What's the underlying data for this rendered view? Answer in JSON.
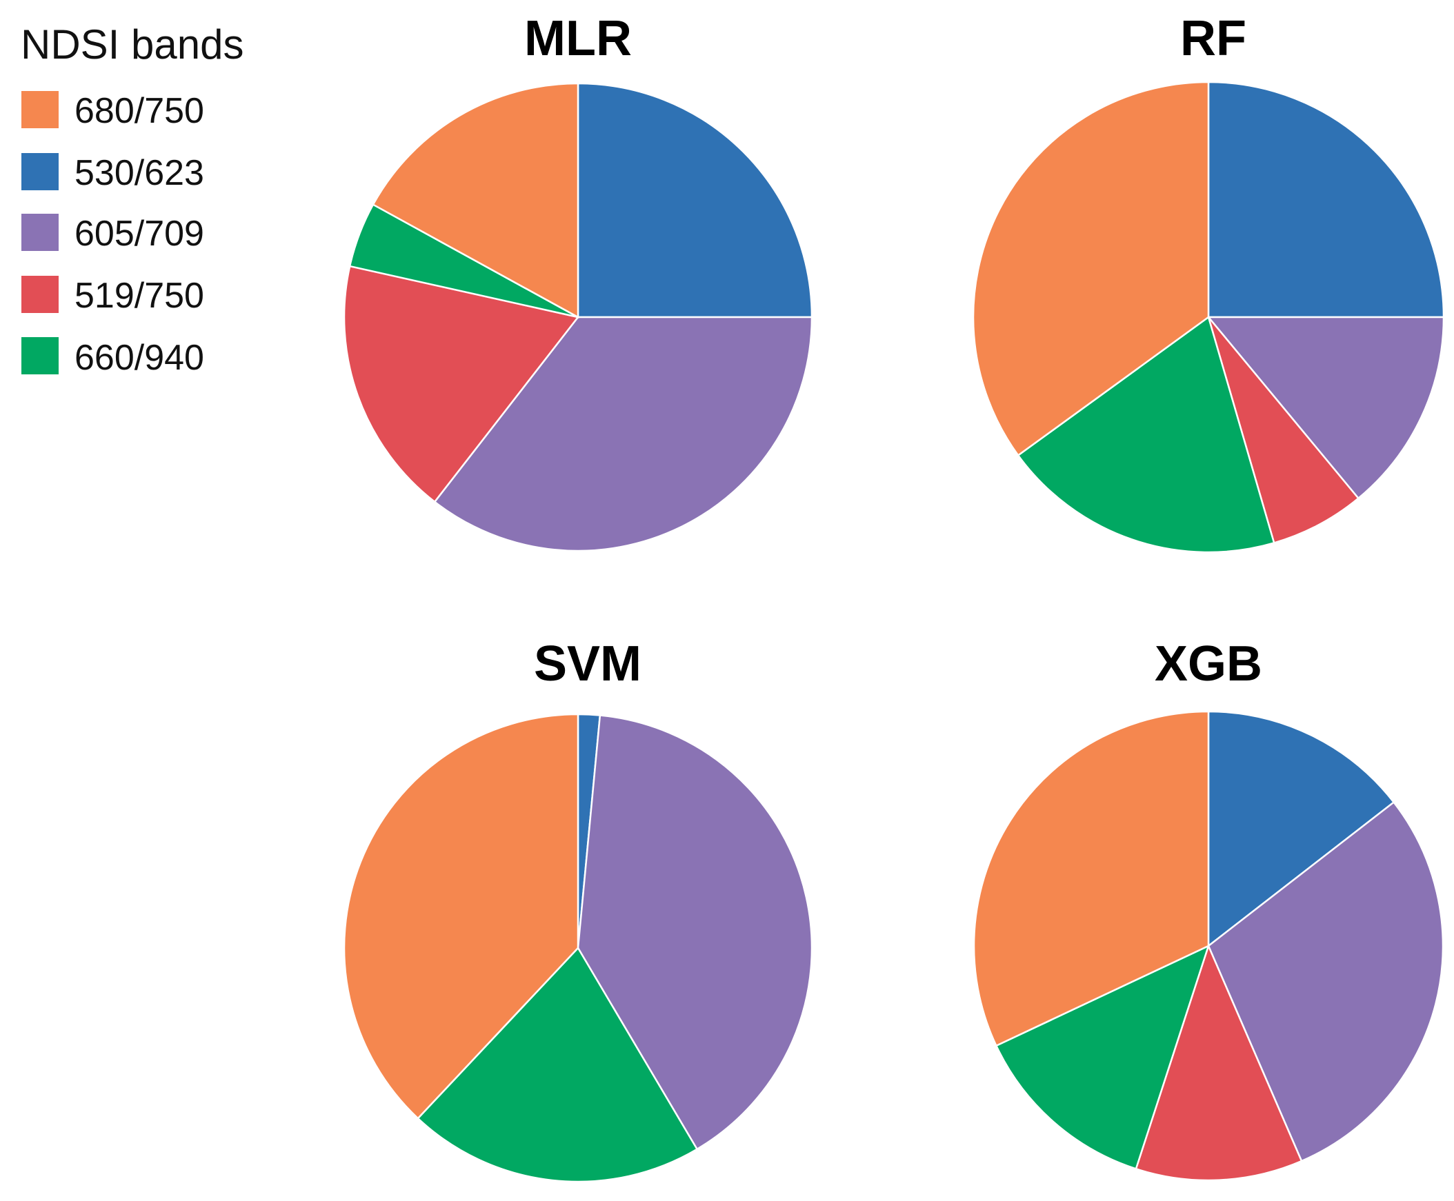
{
  "legend": {
    "title": "NDSI bands",
    "items": [
      {
        "label": "680/750",
        "color": "#f5874f"
      },
      {
        "label": "530/623",
        "color": "#2f72b4"
      },
      {
        "label": "605/709",
        "color": "#8a73b4"
      },
      {
        "label": "519/750",
        "color": "#e24e55"
      },
      {
        "label": "660/940",
        "color": "#01a862"
      }
    ]
  },
  "chart_data": [
    {
      "type": "pie",
      "title": "MLR",
      "slices": [
        {
          "label": "530/623",
          "value": 25.0
        },
        {
          "label": "605/709",
          "value": 35.5
        },
        {
          "label": "519/750",
          "value": 18.0
        },
        {
          "label": "660/940",
          "value": 4.5
        },
        {
          "label": "680/750",
          "value": 17.0
        }
      ]
    },
    {
      "type": "pie",
      "title": "RF",
      "slices": [
        {
          "label": "530/623",
          "value": 25.0
        },
        {
          "label": "605/709",
          "value": 14.0
        },
        {
          "label": "519/750",
          "value": 6.5
        },
        {
          "label": "660/940",
          "value": 19.5
        },
        {
          "label": "680/750",
          "value": 35.0
        }
      ]
    },
    {
      "type": "pie",
      "title": "SVM",
      "slices": [
        {
          "label": "530/623",
          "value": 1.5
        },
        {
          "label": "605/709",
          "value": 40.0
        },
        {
          "label": "660/940",
          "value": 20.5
        },
        {
          "label": "680/750",
          "value": 38.0
        }
      ]
    },
    {
      "type": "pie",
      "title": "XGB",
      "slices": [
        {
          "label": "530/623",
          "value": 14.5
        },
        {
          "label": "605/709",
          "value": 29.0
        },
        {
          "label": "519/750",
          "value": 11.5
        },
        {
          "label": "660/940",
          "value": 13.0
        },
        {
          "label": "680/750",
          "value": 32.0
        }
      ]
    }
  ]
}
